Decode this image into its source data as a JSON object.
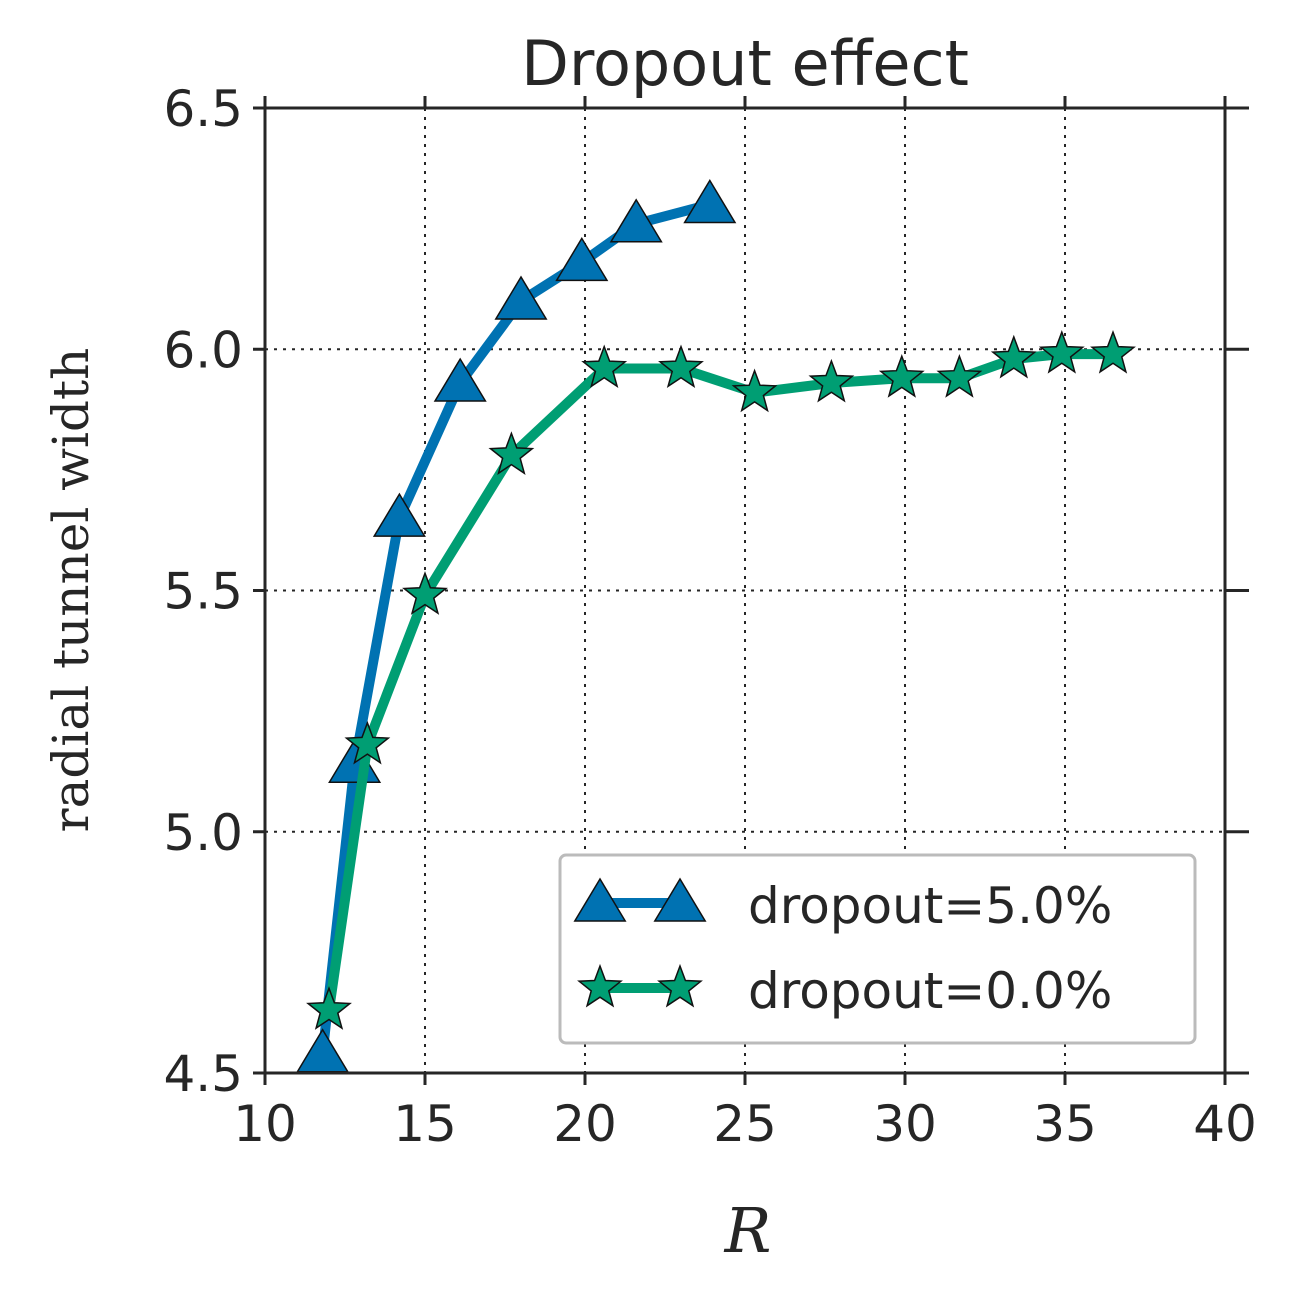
{
  "chart_data": {
    "type": "line",
    "title": "Dropout effect",
    "xlabel": "R",
    "ylabel": "radial tunnel width",
    "xlim": [
      10,
      40
    ],
    "ylim": [
      4.5,
      6.5
    ],
    "xticks": [
      "10",
      "15",
      "20",
      "25",
      "30",
      "35",
      "40"
    ],
    "yticks": [
      "4.5",
      "5.0",
      "5.5",
      "6.0",
      "6.5"
    ],
    "grid": true,
    "legend_position": "bottom-right",
    "series": [
      {
        "name": "dropout=5.0%",
        "color": "#0072b2",
        "marker": "triangle",
        "x": [
          11.8,
          12.8,
          14.2,
          16.1,
          18.0,
          19.9,
          21.6,
          23.9
        ],
        "y": [
          4.54,
          5.14,
          5.65,
          5.93,
          6.1,
          6.18,
          6.26,
          6.3
        ]
      },
      {
        "name": "dropout=0.0%",
        "color": "#009e73",
        "marker": "star",
        "x": [
          12.0,
          13.2,
          15.0,
          17.7,
          20.6,
          23.0,
          25.3,
          27.7,
          29.9,
          31.7,
          33.4,
          34.9,
          36.5
        ],
        "y": [
          4.63,
          5.18,
          5.49,
          5.78,
          5.96,
          5.96,
          5.91,
          5.93,
          5.94,
          5.94,
          5.98,
          5.99,
          5.99
        ]
      }
    ]
  }
}
